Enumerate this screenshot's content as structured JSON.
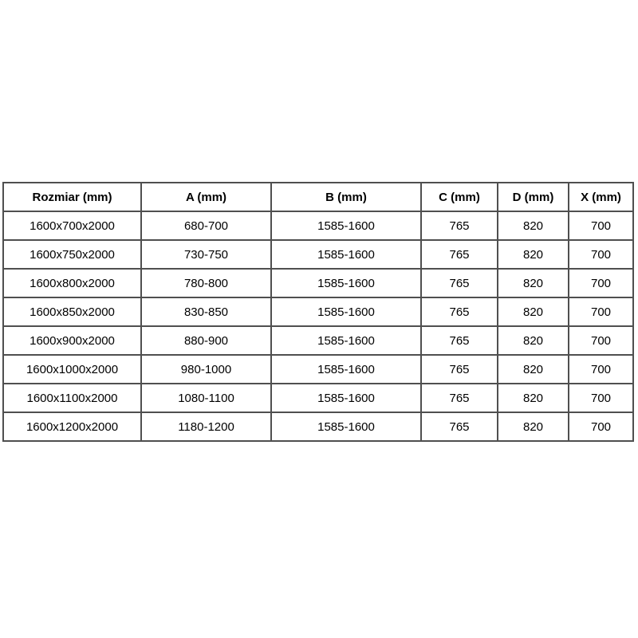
{
  "table": {
    "name": "size-specification-table",
    "headers": [
      {
        "id": "rozmiar",
        "label": "Rozmiar (mm)"
      },
      {
        "id": "a",
        "label": "A (mm)"
      },
      {
        "id": "b",
        "label": "B (mm)"
      },
      {
        "id": "c",
        "label": "C (mm)"
      },
      {
        "id": "d",
        "label": "D (mm)"
      },
      {
        "id": "x",
        "label": "X (mm)"
      }
    ],
    "rows": [
      {
        "rozmiar": "1600x700x2000",
        "a": "680-700",
        "b": "1585-1600",
        "c": "765",
        "d": "820",
        "x": "700"
      },
      {
        "rozmiar": "1600x750x2000",
        "a": "730-750",
        "b": "1585-1600",
        "c": "765",
        "d": "820",
        "x": "700"
      },
      {
        "rozmiar": "1600x800x2000",
        "a": "780-800",
        "b": "1585-1600",
        "c": "765",
        "d": "820",
        "x": "700"
      },
      {
        "rozmiar": "1600x850x2000",
        "a": "830-850",
        "b": "1585-1600",
        "c": "765",
        "d": "820",
        "x": "700"
      },
      {
        "rozmiar": "1600x900x2000",
        "a": "880-900",
        "b": "1585-1600",
        "c": "765",
        "d": "820",
        "x": "700"
      },
      {
        "rozmiar": "1600x1000x2000",
        "a": "980-1000",
        "b": "1585-1600",
        "c": "765",
        "d": "820",
        "x": "700"
      },
      {
        "rozmiar": "1600x1100x2000",
        "a": "1080-1100",
        "b": "1585-1600",
        "c": "765",
        "d": "820",
        "x": "700"
      },
      {
        "rozmiar": "1600x1200x2000",
        "a": "1180-1200",
        "b": "1585-1600",
        "c": "765",
        "d": "820",
        "x": "700"
      }
    ],
    "colors": {
      "border": "#4f4f4f",
      "text": "#000000",
      "background": "#ffffff"
    }
  }
}
